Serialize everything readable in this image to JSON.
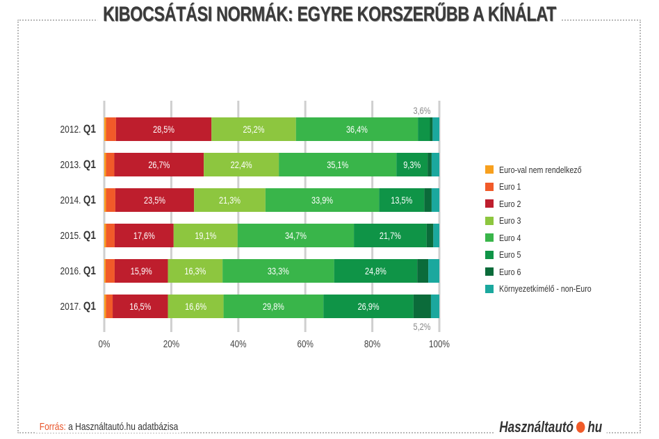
{
  "title": "KIBOCSÁTÁSI NORMÁK: EGYRE KORSZERŰBB A KÍNÁLAT",
  "footer": {
    "source_label": "Forrás:",
    "source_text": "a Használtautó.hu adatbázisa",
    "brand_left": "Használtautó",
    "brand_right": "hu"
  },
  "chart_data": {
    "type": "bar",
    "orientation": "horizontal-stacked-100",
    "title": "KIBOCSÁTÁSI NORMÁK: EGYRE KORSZERŰBB A KÍNÁLAT",
    "categories": [
      {
        "year": "2012.",
        "q": "Q1"
      },
      {
        "year": "2013.",
        "q": "Q1"
      },
      {
        "year": "2014.",
        "q": "Q1"
      },
      {
        "year": "2015.",
        "q": "Q1"
      },
      {
        "year": "2016.",
        "q": "Q1"
      },
      {
        "year": "2017.",
        "q": "Q1"
      }
    ],
    "xlim": [
      0,
      100
    ],
    "xticks": [
      "0%",
      "20%",
      "40%",
      "60%",
      "80%",
      "100%"
    ],
    "grid": true,
    "legend_position": "right",
    "series": [
      {
        "name": "Euro-val nem rendelkező",
        "color": "#f7a01e",
        "values": [
          0.5,
          0.5,
          0.5,
          0.5,
          0.4,
          0.5
        ],
        "labels": [
          null,
          null,
          null,
          null,
          null,
          null
        ]
      },
      {
        "name": "Euro 1",
        "color": "#f15a29",
        "values": [
          3.0,
          2.5,
          2.8,
          2.6,
          2.7,
          2.0
        ],
        "labels": [
          null,
          null,
          null,
          null,
          null,
          null
        ]
      },
      {
        "name": "Euro 2",
        "color": "#be1e2d",
        "values": [
          28.5,
          26.7,
          23.5,
          17.6,
          15.9,
          16.5
        ],
        "labels": [
          "28,5%",
          "26,7%",
          "23,5%",
          "17,6%",
          "15,9%",
          "16,5%"
        ]
      },
      {
        "name": "Euro 3",
        "color": "#8dc63f",
        "values": [
          25.2,
          22.4,
          21.3,
          19.1,
          16.3,
          16.6
        ],
        "labels": [
          "25,2%",
          "22,4%",
          "21,3%",
          "19,1%",
          "16,3%",
          "16,6%"
        ]
      },
      {
        "name": "Euro 4",
        "color": "#39b54a",
        "values": [
          36.4,
          35.1,
          33.9,
          34.7,
          33.3,
          29.8
        ],
        "labels": [
          "36,4%",
          "35,1%",
          "33,9%",
          "34,7%",
          "33,3%",
          "29,8%"
        ]
      },
      {
        "name": "Euro 5",
        "color": "#0f9447",
        "values": [
          3.6,
          9.3,
          13.5,
          21.7,
          24.8,
          26.9
        ],
        "labels": [
          null,
          "9,3%",
          "13,5%",
          "21,7%",
          "24,8%",
          "26,9%"
        ]
      },
      {
        "name": "Euro 6",
        "color": "#0b6b3a",
        "values": [
          0.8,
          1.2,
          2.2,
          2.0,
          3.3,
          5.2
        ],
        "labels": [
          null,
          null,
          null,
          null,
          null,
          null
        ]
      },
      {
        "name": "Környezetkímélő - non-Euro",
        "color": "#1ba89e",
        "values": [
          2.0,
          2.3,
          2.3,
          1.8,
          3.3,
          2.5
        ],
        "labels": [
          null,
          null,
          null,
          null,
          null,
          null
        ]
      }
    ],
    "annotations": [
      {
        "text": "3,6%",
        "category": "2012.",
        "series": "Euro 5",
        "position": "above"
      },
      {
        "text": "5,2%",
        "category": "2017.",
        "series": "Euro 6",
        "position": "below"
      }
    ]
  }
}
